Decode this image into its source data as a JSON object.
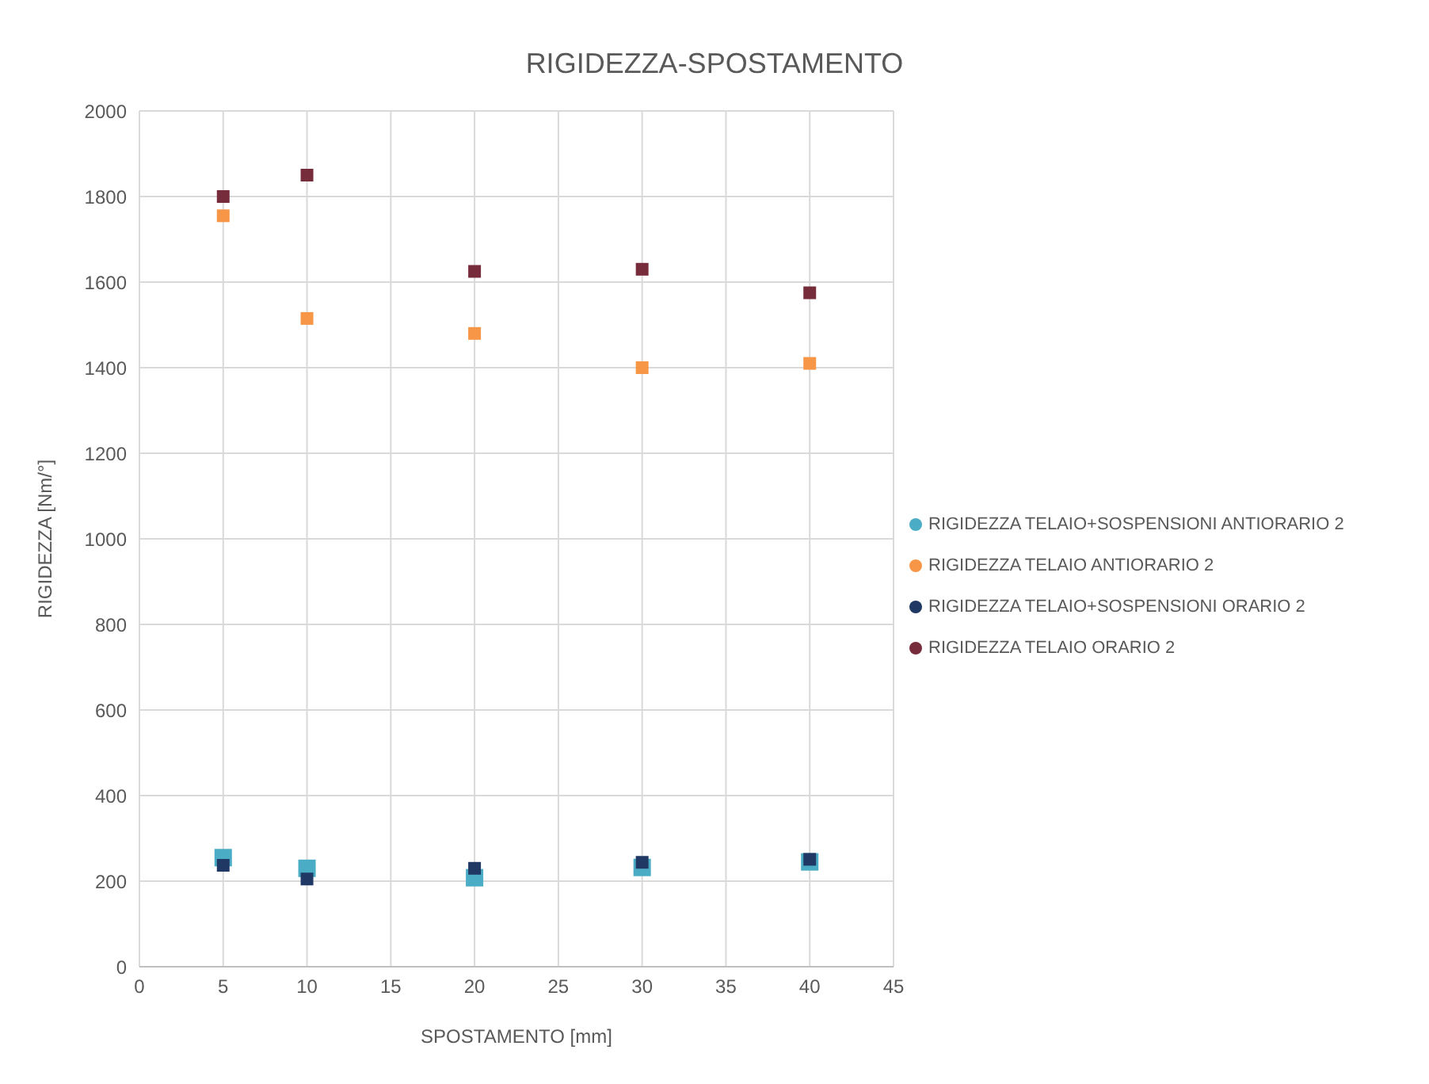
{
  "chart_data": {
    "type": "scatter",
    "title": "RIGIDEZZA-SPOSTAMENTO",
    "xlabel": "SPOSTAMENTO  [mm]",
    "ylabel": "RIGIDEZZA [Nm/°]",
    "x": [
      5,
      10,
      20,
      30,
      40
    ],
    "series": [
      {
        "name": "RIGIDEZZA TELAIO+SOSPENSIONI ANTIORARIO 2",
        "color": "#4bacc6",
        "values": [
          255,
          230,
          208,
          232,
          245
        ]
      },
      {
        "name": "RIGIDEZZA TELAIO ANTIORARIO 2",
        "color": "#f79646",
        "values": [
          1755,
          1515,
          1480,
          1400,
          1410
        ]
      },
      {
        "name": "RIGIDEZZA TELAIO+SOSPENSIONI ORARIO 2",
        "color": "#1f3864",
        "values": [
          237,
          205,
          230,
          244,
          251
        ]
      },
      {
        "name": "RIGIDEZZA TELAIO ORARIO 2",
        "color": "#772c3c",
        "values": [
          1800,
          1850,
          1625,
          1630,
          1575
        ]
      }
    ],
    "xlim": [
      0,
      45
    ],
    "xticks": [
      0,
      5,
      10,
      15,
      20,
      25,
      30,
      35,
      40,
      45
    ],
    "ylim": [
      0,
      2000
    ],
    "yticks": [
      0,
      200,
      400,
      600,
      800,
      1000,
      1200,
      1400,
      1600,
      1800,
      2000
    ],
    "grid": true,
    "legend": "right",
    "marker": "square"
  }
}
